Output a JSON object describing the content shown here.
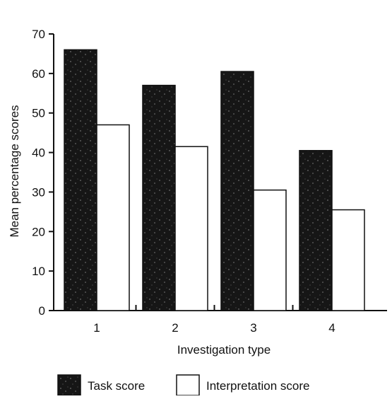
{
  "chart_data": {
    "type": "bar",
    "title": "",
    "xlabel": "Investigation type",
    "ylabel": "Mean percentage scores",
    "categories": [
      "1",
      "2",
      "3",
      "4"
    ],
    "ylim": [
      0,
      70
    ],
    "yticks": [
      0,
      10,
      20,
      30,
      40,
      50,
      60,
      70
    ],
    "grid": false,
    "legend_position": "bottom",
    "series": [
      {
        "name": "Task score",
        "values": [
          66,
          57,
          60.5,
          40.5
        ],
        "color": "#1a1a1a"
      },
      {
        "name": "Interpretation score",
        "values": [
          47,
          41.5,
          30.5,
          25.5
        ],
        "color": "#ffffff"
      }
    ]
  }
}
